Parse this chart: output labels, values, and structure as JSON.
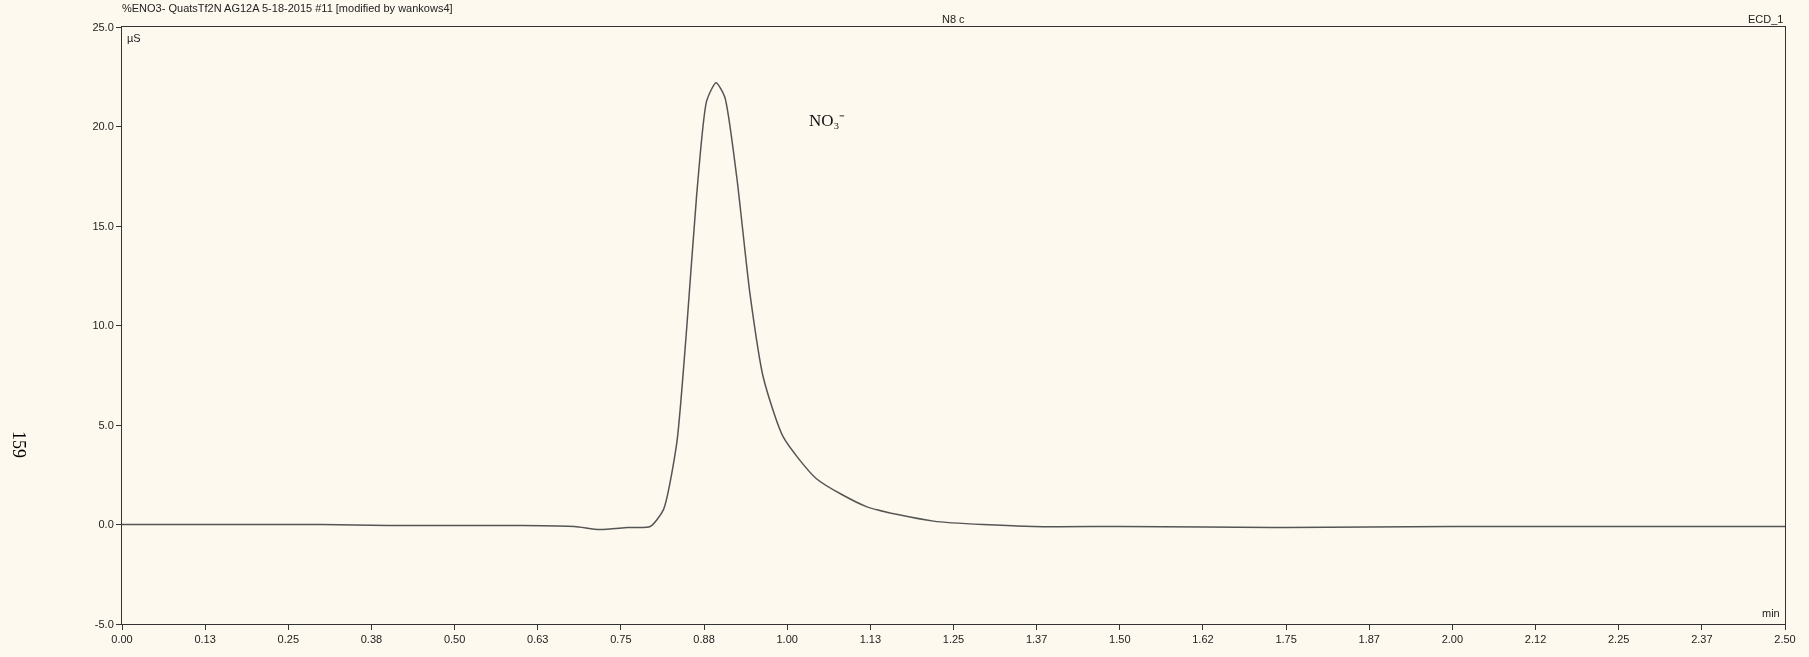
{
  "chart_data": {
    "type": "line",
    "title": "%ENO3- QuatsTf2N AG12A 5-18-2015 #11 [modified by wankows4]",
    "xlabel": "min",
    "ylabel": "µS",
    "annotations": [
      "N8 c",
      "ECD_1",
      "159",
      "NO₃⁻"
    ],
    "x": [
      0,
      0.1,
      0.2,
      0.3,
      0.4,
      0.5,
      0.6,
      0.68,
      0.718,
      0.76,
      0.794,
      0.814,
      0.834,
      0.849,
      0.864,
      0.879,
      0.893,
      0.906,
      0.924,
      0.944,
      0.964,
      0.994,
      1.044,
      1.119,
      1.22,
      1.37,
      1.5,
      1.75,
      2.0,
      2.25,
      2.5
    ],
    "series": [
      {
        "color": "#555555",
        "values": [
          0,
          0,
          0,
          0,
          -0.05,
          -0.05,
          -0.05,
          -0.1,
          -0.25,
          -0.15,
          -0.1,
          0.75,
          4.1,
          9.9,
          16.6,
          21.3,
          22.2,
          21.5,
          17.5,
          11.6,
          7.4,
          4.4,
          2.3,
          0.9,
          0.17,
          -0.1,
          -0.1,
          -0.15,
          -0.1,
          -0.1,
          -0.1
        ]
      }
    ],
    "xlim": [
      0,
      2.5
    ],
    "ylim": [
      -5,
      25
    ],
    "xticks": [
      {
        "value": 0,
        "label": "0.00"
      },
      {
        "value": 0.125,
        "label": "0.13"
      },
      {
        "value": 0.25,
        "label": "0.25"
      },
      {
        "value": 0.375,
        "label": "0.38"
      },
      {
        "value": 0.5,
        "label": "0.50"
      },
      {
        "value": 0.625,
        "label": "0.63"
      },
      {
        "value": 0.75,
        "label": "0.75"
      },
      {
        "value": 0.875,
        "label": "0.88"
      },
      {
        "value": 1,
        "label": "1.00"
      },
      {
        "value": 1.125,
        "label": "1.13"
      },
      {
        "value": 1.25,
        "label": "1.25"
      },
      {
        "value": 1.375,
        "label": "1.37"
      },
      {
        "value": 1.5,
        "label": "1.50"
      },
      {
        "value": 1.625,
        "label": "1.62"
      },
      {
        "value": 1.75,
        "label": "1.75"
      },
      {
        "value": 1.875,
        "label": "1.87"
      },
      {
        "value": 2,
        "label": "2.00"
      },
      {
        "value": 2.125,
        "label": "2.12"
      },
      {
        "value": 2.25,
        "label": "2.25"
      },
      {
        "value": 2.375,
        "label": "2.37"
      },
      {
        "value": 2.5,
        "label": "2.50"
      }
    ],
    "yticks": [
      {
        "value": -5,
        "label": "-5.0"
      },
      {
        "value": 0,
        "label": "0.0"
      },
      {
        "value": 5,
        "label": "5.0"
      },
      {
        "value": 10,
        "label": "10.0"
      },
      {
        "value": 15,
        "label": "15.0"
      },
      {
        "value": 20,
        "label": "20.0"
      },
      {
        "value": 25,
        "label": "25.0"
      }
    ],
    "grid": false,
    "marker": "none",
    "line_style": "solid"
  }
}
